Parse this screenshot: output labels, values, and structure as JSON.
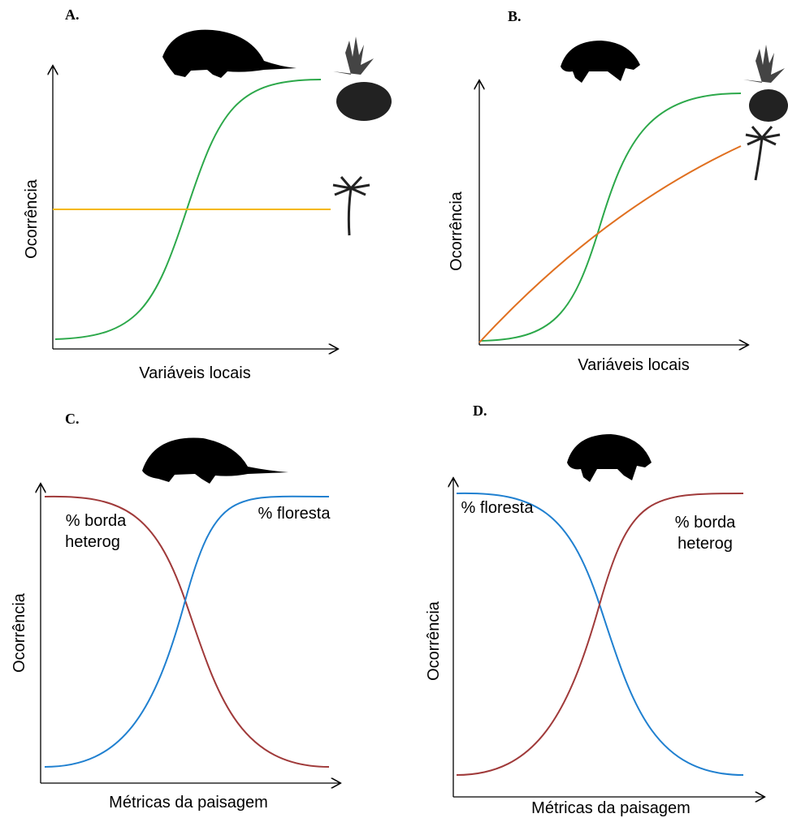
{
  "panels": [
    {
      "label": "A.",
      "y_axis": "Ocorrência",
      "x_axis": "Variáveis locais"
    },
    {
      "label": "B.",
      "y_axis": "Ocorrência",
      "x_axis": "Variáveis locais"
    },
    {
      "label": "C.",
      "y_axis": "Ocorrência",
      "x_axis": "Métricas da paisagem",
      "curve_labels": [
        {
          "lines": [
            "% borda",
            "heterog"
          ]
        },
        {
          "lines": [
            "% floresta"
          ]
        }
      ]
    },
    {
      "label": "D.",
      "y_axis": "Ocorrência",
      "x_axis": "Métricas da paisagem",
      "curve_labels": [
        {
          "lines": [
            "% floresta"
          ]
        },
        {
          "lines": [
            "% borda",
            "heterog"
          ]
        }
      ]
    }
  ]
}
